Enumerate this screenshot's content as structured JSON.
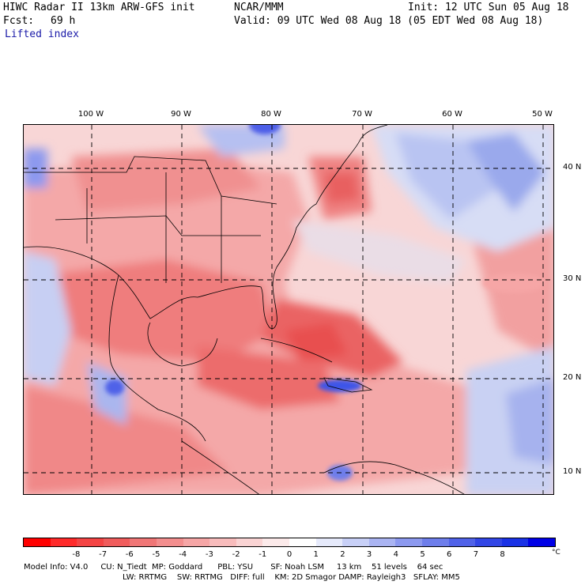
{
  "header": {
    "model_title": "HIWC Radar II 13km ARW-GFS init",
    "org": "NCAR/MMM",
    "init": "Init: 12 UTC Sun 05 Aug 18",
    "fcst_label": "Fcst:",
    "fcst_value": "69 h",
    "valid": "Valid: 09 UTC Wed 08 Aug 18 (05 EDT Wed 08 Aug 18)",
    "field": "Lifted index"
  },
  "map": {
    "lon_labels": [
      "100 W",
      "90 W",
      "80 W",
      "70 W",
      "60 W",
      "50 W"
    ],
    "lat_labels": [
      "40 N",
      "30 N",
      "20 N",
      "10 N"
    ],
    "field_colors": {
      "ocean_neutral": "#f6dede",
      "unstable_light": "#f4a8a8",
      "unstable_mid": "#ef7d7d",
      "unstable_strong": "#e8504f",
      "stable_light": "#d7ddf5",
      "stable_mid": "#9aa9ec",
      "stable_strong": "#4d5ee8"
    }
  },
  "colorbar": {
    "ticks": [
      "-8",
      "-7",
      "-6",
      "-5",
      "-4",
      "-3",
      "-2",
      "-1",
      "0",
      "1",
      "2",
      "3",
      "4",
      "5",
      "6",
      "7",
      "8"
    ],
    "unit": "°C",
    "colors": [
      "#ff0000",
      "#ff2a2a",
      "#f44444",
      "#f05c5c",
      "#f07676",
      "#f38e8e",
      "#f6a6a6",
      "#f8bcbc",
      "#fad4d4",
      "#fceaea",
      "#ffffff",
      "#e6eafb",
      "#c8d0f7",
      "#aab4f2",
      "#8c99ef",
      "#6e7eeb",
      "#5062e8",
      "#3246e6",
      "#1a32e6",
      "#0000e6"
    ]
  },
  "model_info": {
    "line1": "Model Info: V4.0     CU: N_Tiedt  MP: Goddard      PBL: YSU       SF: Noah LSM     13 km    51 levels    64 sec",
    "line2": "LW: RRTMG    SW: RRTMG   DIFF: full    KM: 2D Smagor DAMP: Rayleigh3   SFLAY: MM5"
  }
}
